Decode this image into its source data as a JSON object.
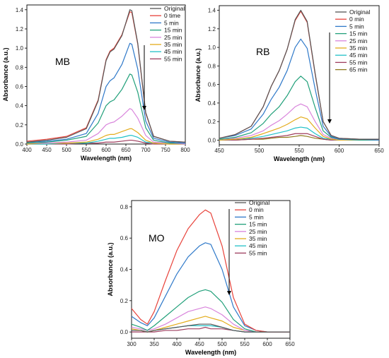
{
  "colors": {
    "Original": "#555555",
    "red": "#e8423a",
    "blue": "#2f79c9",
    "green": "#21a07a",
    "pink": "#d985dc",
    "gold": "#e3ac1b",
    "cyan": "#22c1c8",
    "maroon": "#9e3d5e",
    "olive": "#8f7a1e"
  },
  "chart_data": [
    {
      "type": "line",
      "annotation": "MB",
      "xlabel": "Wavelength (nm)",
      "ylabel": "Absorbance (a.u.)",
      "xlim": [
        400,
        800
      ],
      "ylim": [
        0,
        1.45
      ],
      "xticks": [
        "400",
        "450",
        "500",
        "550",
        "600",
        "650",
        "700",
        "750",
        "800"
      ],
      "yticks": [
        "0.0",
        "0.2",
        "0.4",
        "0.6",
        "0.8",
        "1.0",
        "1.2",
        "1.4"
      ],
      "series": [
        {
          "name": "Original",
          "color": "#555555",
          "x": [
            400,
            450,
            500,
            550,
            580,
            600,
            610,
            620,
            640,
            660,
            665,
            680,
            700,
            720,
            760,
            800
          ],
          "y": [
            0.02,
            0.04,
            0.07,
            0.16,
            0.45,
            0.87,
            0.96,
            0.99,
            1.13,
            1.4,
            1.39,
            1.05,
            0.33,
            0.08,
            0.03,
            0.02
          ]
        },
        {
          "name": "0 time",
          "color": "#e8423a",
          "x": [
            400,
            450,
            500,
            550,
            580,
            600,
            610,
            620,
            640,
            660,
            665,
            680,
            700,
            720,
            760,
            800
          ],
          "y": [
            0.03,
            0.05,
            0.08,
            0.17,
            0.46,
            0.88,
            0.97,
            1.0,
            1.14,
            1.38,
            1.37,
            1.04,
            0.32,
            0.08,
            0.03,
            0.02
          ]
        },
        {
          "name": "5 min",
          "color": "#2f79c9",
          "x": [
            400,
            450,
            500,
            550,
            580,
            600,
            610,
            620,
            640,
            660,
            665,
            680,
            700,
            720,
            760,
            800
          ],
          "y": [
            0.02,
            0.03,
            0.05,
            0.11,
            0.32,
            0.6,
            0.66,
            0.69,
            0.83,
            1.05,
            1.04,
            0.78,
            0.24,
            0.06,
            0.02,
            0.01
          ]
        },
        {
          "name": "15 min",
          "color": "#21a07a",
          "x": [
            400,
            450,
            500,
            550,
            580,
            600,
            610,
            620,
            640,
            660,
            665,
            680,
            700,
            720,
            760,
            800
          ],
          "y": [
            0.01,
            0.02,
            0.04,
            0.08,
            0.22,
            0.4,
            0.44,
            0.46,
            0.57,
            0.73,
            0.72,
            0.54,
            0.17,
            0.04,
            0.01,
            0.01
          ]
        },
        {
          "name": "25 min",
          "color": "#d985dc",
          "x": [
            400,
            450,
            500,
            550,
            580,
            600,
            610,
            620,
            640,
            660,
            665,
            680,
            700,
            720,
            760,
            800
          ],
          "y": [
            0.01,
            0.01,
            0.02,
            0.04,
            0.11,
            0.2,
            0.22,
            0.23,
            0.29,
            0.37,
            0.36,
            0.27,
            0.09,
            0.02,
            0.01,
            0.0
          ]
        },
        {
          "name": "35 min",
          "color": "#e3ac1b",
          "x": [
            400,
            450,
            500,
            550,
            580,
            600,
            610,
            620,
            640,
            660,
            665,
            680,
            700,
            720,
            760,
            800
          ],
          "y": [
            0.0,
            0.01,
            0.01,
            0.02,
            0.05,
            0.09,
            0.1,
            0.1,
            0.13,
            0.16,
            0.16,
            0.12,
            0.04,
            0.01,
            0.0,
            0.0
          ]
        },
        {
          "name": "45 min",
          "color": "#22c1c8",
          "x": [
            400,
            450,
            500,
            550,
            580,
            600,
            610,
            620,
            640,
            660,
            665,
            680,
            700,
            720,
            760,
            800
          ],
          "y": [
            0.0,
            0.0,
            0.01,
            0.01,
            0.03,
            0.05,
            0.06,
            0.06,
            0.07,
            0.09,
            0.09,
            0.07,
            0.02,
            0.01,
            0.0,
            0.0
          ]
        },
        {
          "name": "55 min",
          "color": "#9e3d5e",
          "x": [
            400,
            450,
            500,
            550,
            580,
            600,
            610,
            620,
            640,
            660,
            665,
            680,
            700,
            720,
            760,
            800
          ],
          "y": [
            0.0,
            0.0,
            0.0,
            0.01,
            0.01,
            0.02,
            0.02,
            0.02,
            0.03,
            0.04,
            0.04,
            0.03,
            0.01,
            0.0,
            0.0,
            0.0
          ]
        }
      ]
    },
    {
      "type": "line",
      "annotation": "RB",
      "xlabel": "Wavelength (nm)",
      "ylabel": "Absorbance (a.u.)",
      "xlim": [
        450,
        650
      ],
      "ylim": [
        -0.05,
        1.45
      ],
      "xticks": [
        "450",
        "500",
        "550",
        "600",
        "650"
      ],
      "yticks": [
        "0.0",
        "0.2",
        "0.4",
        "0.6",
        "0.8",
        "1.0",
        "1.2",
        "1.4"
      ],
      "series": [
        {
          "name": "Original",
          "color": "#555555",
          "x": [
            450,
            470,
            490,
            505,
            515,
            525,
            535,
            545,
            552,
            560,
            570,
            580,
            590,
            600,
            625,
            650
          ],
          "y": [
            0.02,
            0.06,
            0.15,
            0.36,
            0.58,
            0.75,
            0.98,
            1.3,
            1.4,
            1.28,
            0.72,
            0.2,
            0.05,
            0.02,
            0.01,
            0.01
          ]
        },
        {
          "name": "0 min",
          "color": "#e8423a",
          "x": [
            450,
            470,
            490,
            505,
            515,
            525,
            535,
            545,
            552,
            560,
            570,
            580,
            590,
            600,
            625,
            650
          ],
          "y": [
            0.02,
            0.06,
            0.15,
            0.36,
            0.58,
            0.75,
            0.98,
            1.29,
            1.39,
            1.27,
            0.71,
            0.2,
            0.05,
            0.02,
            0.01,
            0.01
          ]
        },
        {
          "name": "5 min",
          "color": "#2f79c9",
          "x": [
            450,
            470,
            490,
            505,
            515,
            525,
            535,
            545,
            552,
            560,
            570,
            580,
            590,
            600,
            625,
            650
          ],
          "y": [
            0.02,
            0.05,
            0.12,
            0.28,
            0.44,
            0.57,
            0.75,
            1.0,
            1.09,
            0.99,
            0.55,
            0.15,
            0.04,
            0.01,
            0.01,
            0.0
          ]
        },
        {
          "name": "15 min",
          "color": "#21a07a",
          "x": [
            450,
            470,
            490,
            505,
            515,
            525,
            535,
            545,
            552,
            560,
            570,
            580,
            590,
            600,
            625,
            650
          ],
          "y": [
            0.01,
            0.03,
            0.08,
            0.18,
            0.28,
            0.36,
            0.48,
            0.63,
            0.69,
            0.63,
            0.35,
            0.1,
            0.03,
            0.01,
            0.0,
            0.0
          ]
        },
        {
          "name": "25 min",
          "color": "#d985dc",
          "x": [
            450,
            470,
            490,
            505,
            515,
            525,
            535,
            545,
            552,
            560,
            570,
            580,
            590,
            600,
            625,
            650
          ],
          "y": [
            0.01,
            0.02,
            0.05,
            0.1,
            0.16,
            0.21,
            0.28,
            0.36,
            0.39,
            0.36,
            0.2,
            0.06,
            0.02,
            0.01,
            0.0,
            0.0
          ]
        },
        {
          "name": "35 min",
          "color": "#e3ac1b",
          "x": [
            450,
            470,
            490,
            505,
            515,
            525,
            535,
            545,
            552,
            560,
            570,
            580,
            590,
            600,
            625,
            650
          ],
          "y": [
            0.0,
            0.01,
            0.03,
            0.07,
            0.1,
            0.13,
            0.17,
            0.22,
            0.25,
            0.23,
            0.13,
            0.04,
            0.01,
            0.0,
            0.0,
            0.0
          ]
        },
        {
          "name": "45 min",
          "color": "#22c1c8",
          "x": [
            450,
            470,
            490,
            505,
            515,
            525,
            535,
            545,
            552,
            560,
            570,
            580,
            590,
            600,
            625,
            650
          ],
          "y": [
            0.0,
            0.01,
            0.02,
            0.04,
            0.06,
            0.08,
            0.1,
            0.13,
            0.14,
            0.13,
            0.07,
            0.02,
            0.01,
            0.0,
            0.0,
            0.0
          ]
        },
        {
          "name": "55 min",
          "color": "#9e3d5e",
          "x": [
            450,
            470,
            490,
            505,
            515,
            525,
            535,
            545,
            552,
            560,
            570,
            580,
            590,
            600,
            625,
            650
          ],
          "y": [
            0.0,
            0.0,
            0.01,
            0.02,
            0.03,
            0.04,
            0.05,
            0.07,
            0.07,
            0.07,
            0.04,
            0.01,
            0.0,
            0.0,
            0.0,
            0.0
          ]
        },
        {
          "name": "65 min",
          "color": "#8f7a1e",
          "x": [
            450,
            470,
            490,
            505,
            515,
            525,
            535,
            545,
            552,
            560,
            570,
            580,
            590,
            600,
            625,
            650
          ],
          "y": [
            0.0,
            0.0,
            0.01,
            0.01,
            0.02,
            0.03,
            0.03,
            0.04,
            0.05,
            0.04,
            0.02,
            0.01,
            0.0,
            0.0,
            0.0,
            0.0
          ]
        }
      ]
    },
    {
      "type": "line",
      "annotation": "MO",
      "xlabel": "Wavelength (nm)",
      "ylabel": "Absorbance (a.u.)",
      "xlim": [
        300,
        650
      ],
      "ylim": [
        -0.04,
        0.84
      ],
      "xticks": [
        "300",
        "350",
        "400",
        "450",
        "500",
        "550",
        "600",
        "650"
      ],
      "yticks": [
        "0.0",
        "0.2",
        "0.4",
        "0.6",
        "0.8"
      ],
      "series": [
        {
          "name": "Original",
          "color": "#555555",
          "x": [
            300,
            320,
            335,
            350,
            375,
            400,
            425,
            450,
            463,
            475,
            500,
            525,
            550,
            575,
            600,
            650
          ],
          "y": [
            0.01,
            0.01,
            0.0,
            0.01,
            0.02,
            0.03,
            0.04,
            0.05,
            0.05,
            0.05,
            0.03,
            0.01,
            0.0,
            0.0,
            0.0,
            0.0
          ]
        },
        {
          "name": "0 min",
          "color": "#e8423a",
          "x": [
            300,
            320,
            335,
            350,
            375,
            400,
            425,
            450,
            463,
            475,
            500,
            525,
            550,
            575,
            600,
            650
          ],
          "y": [
            0.15,
            0.08,
            0.05,
            0.13,
            0.33,
            0.52,
            0.66,
            0.75,
            0.78,
            0.76,
            0.55,
            0.22,
            0.05,
            0.01,
            0.0,
            0.0
          ]
        },
        {
          "name": "5 min",
          "color": "#2f79c9",
          "x": [
            300,
            320,
            335,
            350,
            375,
            400,
            425,
            450,
            463,
            475,
            500,
            525,
            550,
            575,
            600,
            650
          ],
          "y": [
            0.1,
            0.06,
            0.04,
            0.09,
            0.23,
            0.37,
            0.48,
            0.55,
            0.57,
            0.56,
            0.4,
            0.16,
            0.04,
            0.01,
            0.0,
            0.0
          ]
        },
        {
          "name": "15 min",
          "color": "#21a07a",
          "x": [
            300,
            320,
            335,
            350,
            375,
            400,
            425,
            450,
            463,
            475,
            500,
            525,
            550,
            575,
            600,
            650
          ],
          "y": [
            0.05,
            0.03,
            0.01,
            0.04,
            0.1,
            0.16,
            0.22,
            0.26,
            0.27,
            0.26,
            0.19,
            0.08,
            0.02,
            0.0,
            0.0,
            0.0
          ]
        },
        {
          "name": "25 min",
          "color": "#d985dc",
          "x": [
            300,
            320,
            335,
            350,
            375,
            400,
            425,
            450,
            463,
            475,
            500,
            525,
            550,
            575,
            600,
            650
          ],
          "y": [
            0.03,
            0.02,
            0.01,
            0.02,
            0.05,
            0.09,
            0.13,
            0.15,
            0.16,
            0.15,
            0.11,
            0.05,
            0.01,
            0.0,
            0.0,
            0.0
          ]
        },
        {
          "name": "35 min",
          "color": "#e3ac1b",
          "x": [
            300,
            320,
            335,
            350,
            375,
            400,
            425,
            450,
            463,
            475,
            500,
            525,
            550,
            575,
            600,
            650
          ],
          "y": [
            0.02,
            0.01,
            0.0,
            0.01,
            0.03,
            0.05,
            0.07,
            0.09,
            0.1,
            0.09,
            0.07,
            0.03,
            0.01,
            0.0,
            0.0,
            0.0
          ]
        },
        {
          "name": "45 min",
          "color": "#22c1c8",
          "x": [
            300,
            320,
            335,
            350,
            375,
            400,
            425,
            450,
            463,
            475,
            500,
            525,
            550,
            575,
            600,
            650
          ],
          "y": [
            0.01,
            0.01,
            0.0,
            0.01,
            0.02,
            0.03,
            0.04,
            0.04,
            0.04,
            0.04,
            0.03,
            0.01,
            0.0,
            0.0,
            0.0,
            0.0
          ]
        },
        {
          "name": "55 min",
          "color": "#9e3d5e",
          "x": [
            300,
            320,
            335,
            350,
            375,
            400,
            425,
            450,
            463,
            475,
            500,
            525,
            550,
            575,
            600,
            650
          ],
          "y": [
            0.0,
            0.0,
            0.0,
            0.0,
            0.01,
            0.01,
            0.02,
            0.02,
            0.03,
            0.02,
            0.02,
            0.01,
            0.0,
            0.0,
            0.0,
            0.0
          ]
        }
      ]
    }
  ]
}
